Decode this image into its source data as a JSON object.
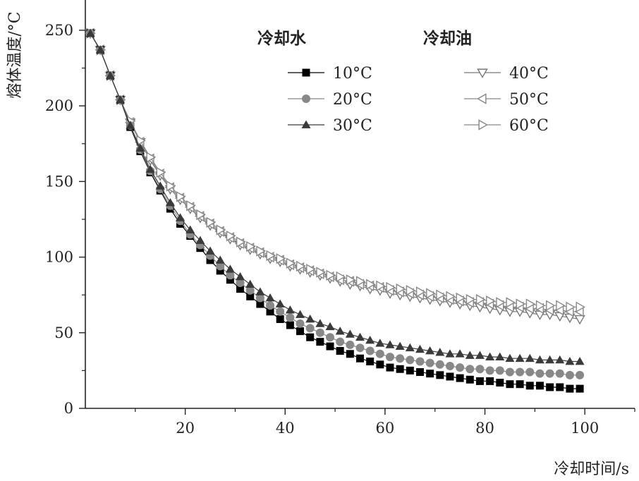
{
  "chart_data": {
    "type": "line",
    "xlabel": "冷却时间/s",
    "ylabel": "熔体温度/°C",
    "xlim": [
      0,
      110
    ],
    "ylim": [
      0,
      270
    ],
    "x_ticks": [
      20,
      40,
      60,
      80,
      100
    ],
    "y_ticks": [
      0,
      50,
      100,
      150,
      200,
      250
    ],
    "grid": false,
    "legend_position": "top-right",
    "legend_groups": [
      {
        "title": "冷却水",
        "series": [
          "10°C",
          "20°C",
          "30°C"
        ]
      },
      {
        "title": "冷却油",
        "series": [
          "40°C",
          "50°C",
          "60°C"
        ]
      }
    ],
    "x": [
      1,
      3,
      5,
      7,
      9,
      11,
      13,
      15,
      17,
      19,
      21,
      23,
      25,
      27,
      29,
      31,
      33,
      35,
      37,
      39,
      41,
      43,
      45,
      47,
      49,
      51,
      53,
      55,
      57,
      59,
      61,
      63,
      65,
      67,
      69,
      71,
      73,
      75,
      77,
      79,
      81,
      83,
      85,
      87,
      89,
      91,
      93,
      95,
      97,
      99
    ],
    "series": [
      {
        "name": "10°C",
        "marker": "square-filled",
        "color": "#000000",
        "values": [
          248,
          237,
          220,
          204,
          186,
          170,
          156,
          144,
          132,
          122,
          114,
          106,
          98,
          91,
          85,
          79,
          74,
          69,
          64,
          59,
          55,
          51,
          47,
          44,
          41,
          38,
          36,
          33,
          31,
          29,
          27,
          26,
          25,
          24,
          23,
          22,
          21,
          20,
          19,
          18,
          18,
          17,
          16,
          16,
          15,
          15,
          14,
          14,
          13,
          13
        ]
      },
      {
        "name": "20°C",
        "marker": "circle-filled",
        "color": "#888888",
        "values": [
          248,
          237,
          220,
          204,
          187,
          171,
          157,
          145,
          134,
          124,
          115,
          108,
          101,
          94,
          88,
          83,
          78,
          73,
          68,
          64,
          60,
          56,
          53,
          50,
          47,
          44,
          42,
          40,
          38,
          36,
          34,
          33,
          32,
          31,
          30,
          29,
          28,
          27,
          26,
          26,
          25,
          25,
          24,
          24,
          24,
          23,
          23,
          23,
          22,
          22
        ]
      },
      {
        "name": "30°C",
        "marker": "triangle-up-filled",
        "color": "#3a3a3a",
        "values": [
          248,
          237,
          220,
          204,
          187,
          172,
          158,
          147,
          136,
          126,
          118,
          111,
          104,
          98,
          92,
          87,
          82,
          77,
          73,
          69,
          65,
          62,
          59,
          56,
          54,
          51,
          49,
          47,
          45,
          43,
          42,
          41,
          40,
          39,
          38,
          37,
          36,
          36,
          35,
          35,
          34,
          34,
          33,
          33,
          33,
          32,
          32,
          32,
          31,
          31
        ]
      },
      {
        "name": "40°C",
        "marker": "triangle-down-open",
        "color": "#777777",
        "values": [
          248,
          237,
          220,
          204,
          189,
          176,
          164,
          154,
          145,
          138,
          132,
          126,
          121,
          116,
          112,
          108,
          105,
          102,
          99,
          97,
          94,
          92,
          90,
          88,
          86,
          84,
          82,
          81,
          79,
          78,
          76,
          75,
          74,
          73,
          72,
          71,
          70,
          69,
          68,
          67,
          66,
          65,
          64,
          64,
          63,
          62,
          62,
          61,
          60,
          59
        ]
      },
      {
        "name": "50°C",
        "marker": "triangle-left-open",
        "color": "#888888",
        "values": [
          248,
          237,
          220,
          204,
          189,
          176,
          165,
          155,
          146,
          139,
          133,
          127,
          122,
          117,
          113,
          109,
          106,
          103,
          100,
          98,
          95,
          93,
          91,
          89,
          87,
          85,
          84,
          82,
          81,
          80,
          78,
          77,
          76,
          75,
          74,
          73,
          72,
          71,
          70,
          70,
          69,
          68,
          67,
          67,
          66,
          66,
          65,
          65,
          64,
          64
        ]
      },
      {
        "name": "60°C",
        "marker": "triangle-right-open",
        "color": "#888888",
        "values": [
          248,
          237,
          220,
          204,
          190,
          177,
          166,
          156,
          147,
          140,
          134,
          128,
          123,
          118,
          114,
          110,
          107,
          104,
          101,
          99,
          96,
          94,
          92,
          90,
          88,
          87,
          85,
          84,
          82,
          81,
          80,
          79,
          78,
          77,
          76,
          75,
          74,
          73,
          72,
          72,
          71,
          70,
          70,
          69,
          69,
          68,
          68,
          68,
          67,
          67
        ]
      }
    ]
  }
}
